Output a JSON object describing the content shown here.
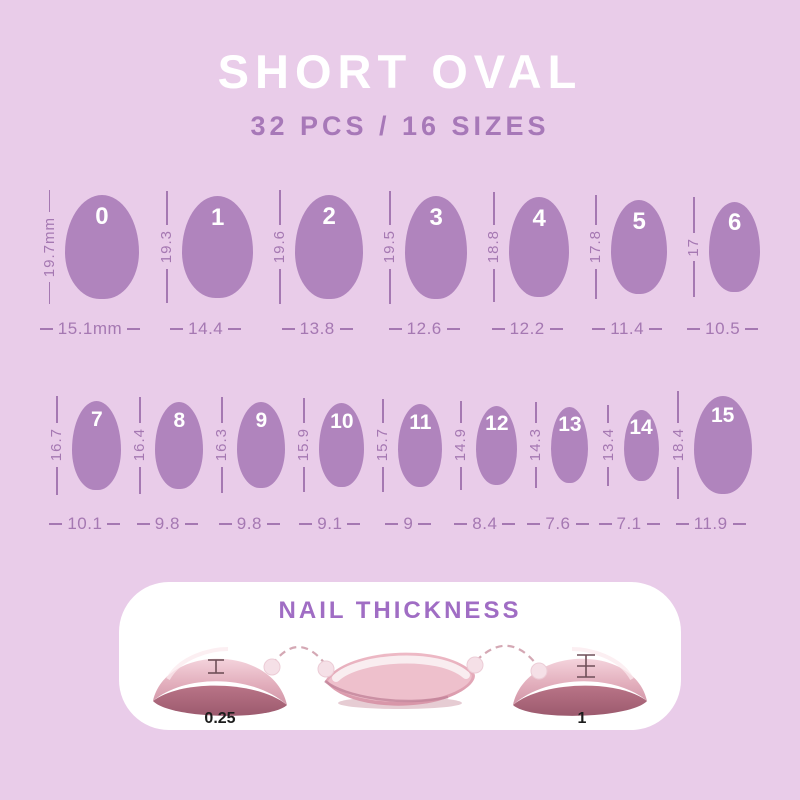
{
  "header": {
    "title": "SHORT OVAL",
    "subtitle": "32 PCS / 16 SIZES"
  },
  "size_chart": {
    "unit": "mm",
    "rows": [
      {
        "nails": [
          {
            "num": "0",
            "height_label": "19.7mm",
            "width_label": "15.1mm",
            "height_mm": 19.7,
            "width_mm": 15.1
          },
          {
            "num": "1",
            "height_label": "19.3",
            "width_label": "14.4",
            "height_mm": 19.3,
            "width_mm": 14.4
          },
          {
            "num": "2",
            "height_label": "19.6",
            "width_label": "13.8",
            "height_mm": 19.6,
            "width_mm": 13.8
          },
          {
            "num": "3",
            "height_label": "19.5",
            "width_label": "12.6",
            "height_mm": 19.5,
            "width_mm": 12.6
          },
          {
            "num": "4",
            "height_label": "18.8",
            "width_label": "12.2",
            "height_mm": 18.8,
            "width_mm": 12.2
          },
          {
            "num": "5",
            "height_label": "17.8",
            "width_label": "11.4",
            "height_mm": 17.8,
            "width_mm": 11.4
          },
          {
            "num": "6",
            "height_label": "17",
            "width_label": "10.5",
            "height_mm": 17.0,
            "width_mm": 10.5
          }
        ]
      },
      {
        "nails": [
          {
            "num": "7",
            "height_label": "16.7",
            "width_label": "10.1",
            "height_mm": 16.7,
            "width_mm": 10.1
          },
          {
            "num": "8",
            "height_label": "16.4",
            "width_label": "9.8",
            "height_mm": 16.4,
            "width_mm": 9.8
          },
          {
            "num": "9",
            "height_label": "16.3",
            "width_label": "9.8",
            "height_mm": 16.3,
            "width_mm": 9.8
          },
          {
            "num": "10",
            "height_label": "15.9",
            "width_label": "9.1",
            "height_mm": 15.9,
            "width_mm": 9.1
          },
          {
            "num": "11",
            "height_label": "15.7",
            "width_label": "9",
            "height_mm": 15.7,
            "width_mm": 9.0
          },
          {
            "num": "12",
            "height_label": "14.9",
            "width_label": "8.4",
            "height_mm": 14.9,
            "width_mm": 8.4
          },
          {
            "num": "13",
            "height_label": "14.3",
            "width_label": "7.6",
            "height_mm": 14.3,
            "width_mm": 7.6
          },
          {
            "num": "14",
            "height_label": "13.4",
            "width_label": "7.1",
            "height_mm": 13.4,
            "width_mm": 7.1
          },
          {
            "num": "15",
            "height_label": "18.4",
            "width_label": "11.9",
            "height_mm": 18.4,
            "width_mm": 11.9
          }
        ]
      }
    ]
  },
  "thickness": {
    "title": "NAIL THICKNESS",
    "left_value": "0.25",
    "right_value": "1"
  },
  "colors": {
    "background": "#e9cce9",
    "nail": "#b084bd",
    "measure_text": "#a578b2",
    "title_text": "#ffffff",
    "subtitle_text": "#a778b8",
    "thickness_title": "#a06dc4",
    "panel_background": "#ffffff",
    "thickness_value_text": "#1c1c1c",
    "nail_pink_light": "#f4d3dc",
    "nail_pink_mid": "#d79fb0",
    "nail_pink_dark": "#b57083"
  }
}
